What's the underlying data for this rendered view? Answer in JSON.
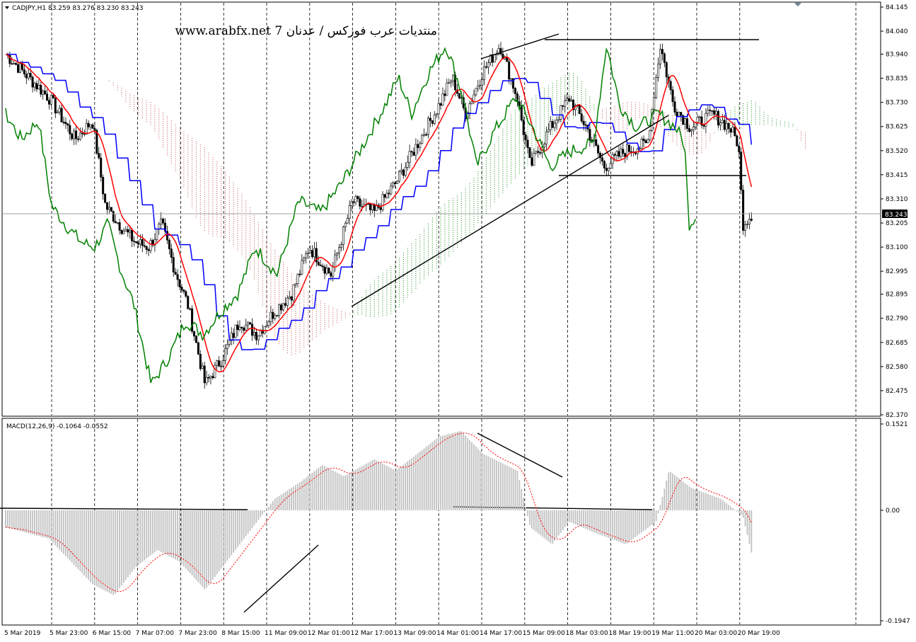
{
  "header": {
    "symbol_label": "CADJPY,H1  83.259 83.276 83.230 83.243",
    "watermark": "www.arabfx.net 7 منتديات عرب فوركس / عدنان"
  },
  "macd": {
    "label": "MACD(12,26,9) -0.1064 -0.0552",
    "ticks": [
      "0.1521",
      "0.00",
      "-0.1947"
    ]
  },
  "price": {
    "current_label": "83.243",
    "ticks": [
      "84.145",
      "84.040",
      "83.940",
      "83.835",
      "83.730",
      "83.625",
      "83.520",
      "83.415",
      "83.310",
      "83.205",
      "83.100",
      "82.995",
      "82.895",
      "82.790",
      "82.685",
      "82.580",
      "82.475",
      "82.370"
    ]
  },
  "colors": {
    "tenkan": "#ff0000",
    "kijun": "#0000ff",
    "chikou": "#008000",
    "bull_cloud": "#008000",
    "bear_cloud": "#c04040",
    "histogram": "#c0c0c0",
    "signal": "#ff0000",
    "candle": "#000000"
  },
  "chart_data": [
    {
      "type": "line",
      "title": "CADJPY,H1",
      "description_of_series": "Candles with Ichimoku (Tenkan red, Kijun blue, Chikou green, Kumo cloud)",
      "x_labels": [
        "5 Mar 2019",
        "5 Mar 23:00",
        "6 Mar 15:00",
        "7 Mar 07:00",
        "7 Mar 23:00",
        "8 Mar 15:00",
        "11 Mar 09:00",
        "12 Mar 01:00",
        "12 Mar 17:00",
        "13 Mar 09:00",
        "14 Mar 01:00",
        "14 Mar 17:00",
        "15 Mar 09:00",
        "18 Mar 03:00",
        "18 Mar 19:00",
        "19 Mar 11:00",
        "20 Mar 03:00",
        "20 Mar 19:00"
      ],
      "ylim": [
        82.37,
        84.145
      ],
      "current_price": 83.243,
      "close_path": [
        {
          "x": 0,
          "y": 83.94
        },
        {
          "x": 1,
          "y": 83.75
        },
        {
          "x": 1.6,
          "y": 83.57
        },
        {
          "x": 2,
          "y": 83.65
        },
        {
          "x": 2.3,
          "y": 83.28
        },
        {
          "x": 2.7,
          "y": 83.18
        },
        {
          "x": 3,
          "y": 83.12
        },
        {
          "x": 3.3,
          "y": 83.1
        },
        {
          "x": 3.6,
          "y": 83.2
        },
        {
          "x": 3.9,
          "y": 83.0
        },
        {
          "x": 4.2,
          "y": 82.85
        },
        {
          "x": 4.6,
          "y": 82.5
        },
        {
          "x": 5,
          "y": 82.62
        },
        {
          "x": 5.4,
          "y": 82.78
        },
        {
          "x": 5.8,
          "y": 82.72
        },
        {
          "x": 6.2,
          "y": 82.82
        },
        {
          "x": 6.6,
          "y": 82.9
        },
        {
          "x": 7,
          "y": 83.1
        },
        {
          "x": 7.5,
          "y": 82.98
        },
        {
          "x": 8,
          "y": 83.3
        },
        {
          "x": 8.5,
          "y": 83.25
        },
        {
          "x": 9,
          "y": 83.38
        },
        {
          "x": 9.5,
          "y": 83.55
        },
        {
          "x": 10,
          "y": 83.72
        },
        {
          "x": 10.3,
          "y": 83.84
        },
        {
          "x": 10.6,
          "y": 83.68
        },
        {
          "x": 11,
          "y": 83.86
        },
        {
          "x": 11.4,
          "y": 83.98
        },
        {
          "x": 11.8,
          "y": 83.75
        },
        {
          "x": 12.1,
          "y": 83.45
        },
        {
          "x": 12.5,
          "y": 83.6
        },
        {
          "x": 13,
          "y": 83.75
        },
        {
          "x": 13.4,
          "y": 83.62
        },
        {
          "x": 13.8,
          "y": 83.45
        },
        {
          "x": 14.3,
          "y": 83.52
        },
        {
          "x": 14.8,
          "y": 83.55
        },
        {
          "x": 15.1,
          "y": 83.98
        },
        {
          "x": 15.4,
          "y": 83.72
        },
        {
          "x": 15.8,
          "y": 83.62
        },
        {
          "x": 16.3,
          "y": 83.68
        },
        {
          "x": 16.7,
          "y": 83.62
        },
        {
          "x": 16.9,
          "y": 83.55
        },
        {
          "x": 17,
          "y": 83.2
        },
        {
          "x": 17.2,
          "y": 83.243
        }
      ],
      "annotations": [
        "rising trendline",
        "channel upper line",
        "horizontal resistance ~84.00",
        "horizontal support ~83.42"
      ]
    },
    {
      "type": "bar",
      "title": "MACD(12,26,9)",
      "series_values": {
        "macd": -0.1064,
        "signal": -0.0552
      },
      "ylim": [
        -0.1947,
        0.1521
      ],
      "histogram_path": [
        {
          "x": 0,
          "y": -0.03
        },
        {
          "x": 1,
          "y": -0.05
        },
        {
          "x": 2,
          "y": -0.13
        },
        {
          "x": 2.5,
          "y": -0.15
        },
        {
          "x": 3,
          "y": -0.1
        },
        {
          "x": 3.5,
          "y": -0.07
        },
        {
          "x": 4,
          "y": -0.09
        },
        {
          "x": 4.6,
          "y": -0.14
        },
        {
          "x": 5.2,
          "y": -0.08
        },
        {
          "x": 5.8,
          "y": -0.02
        },
        {
          "x": 6.2,
          "y": 0.02
        },
        {
          "x": 6.8,
          "y": 0.05
        },
        {
          "x": 7.3,
          "y": 0.08
        },
        {
          "x": 7.8,
          "y": 0.06
        },
        {
          "x": 8.5,
          "y": 0.09
        },
        {
          "x": 9,
          "y": 0.07
        },
        {
          "x": 9.5,
          "y": 0.1
        },
        {
          "x": 10,
          "y": 0.13
        },
        {
          "x": 10.5,
          "y": 0.14
        },
        {
          "x": 11,
          "y": 0.1
        },
        {
          "x": 11.8,
          "y": 0.07
        },
        {
          "x": 12.1,
          "y": -0.03
        },
        {
          "x": 12.6,
          "y": -0.06
        },
        {
          "x": 13,
          "y": -0.02
        },
        {
          "x": 13.6,
          "y": -0.04
        },
        {
          "x": 14.3,
          "y": -0.06
        },
        {
          "x": 15,
          "y": -0.02
        },
        {
          "x": 15.3,
          "y": 0.07
        },
        {
          "x": 15.8,
          "y": 0.04
        },
        {
          "x": 16.5,
          "y": 0.02
        },
        {
          "x": 17,
          "y": -0.01
        },
        {
          "x": 17.3,
          "y": -0.1064
        }
      ]
    }
  ]
}
